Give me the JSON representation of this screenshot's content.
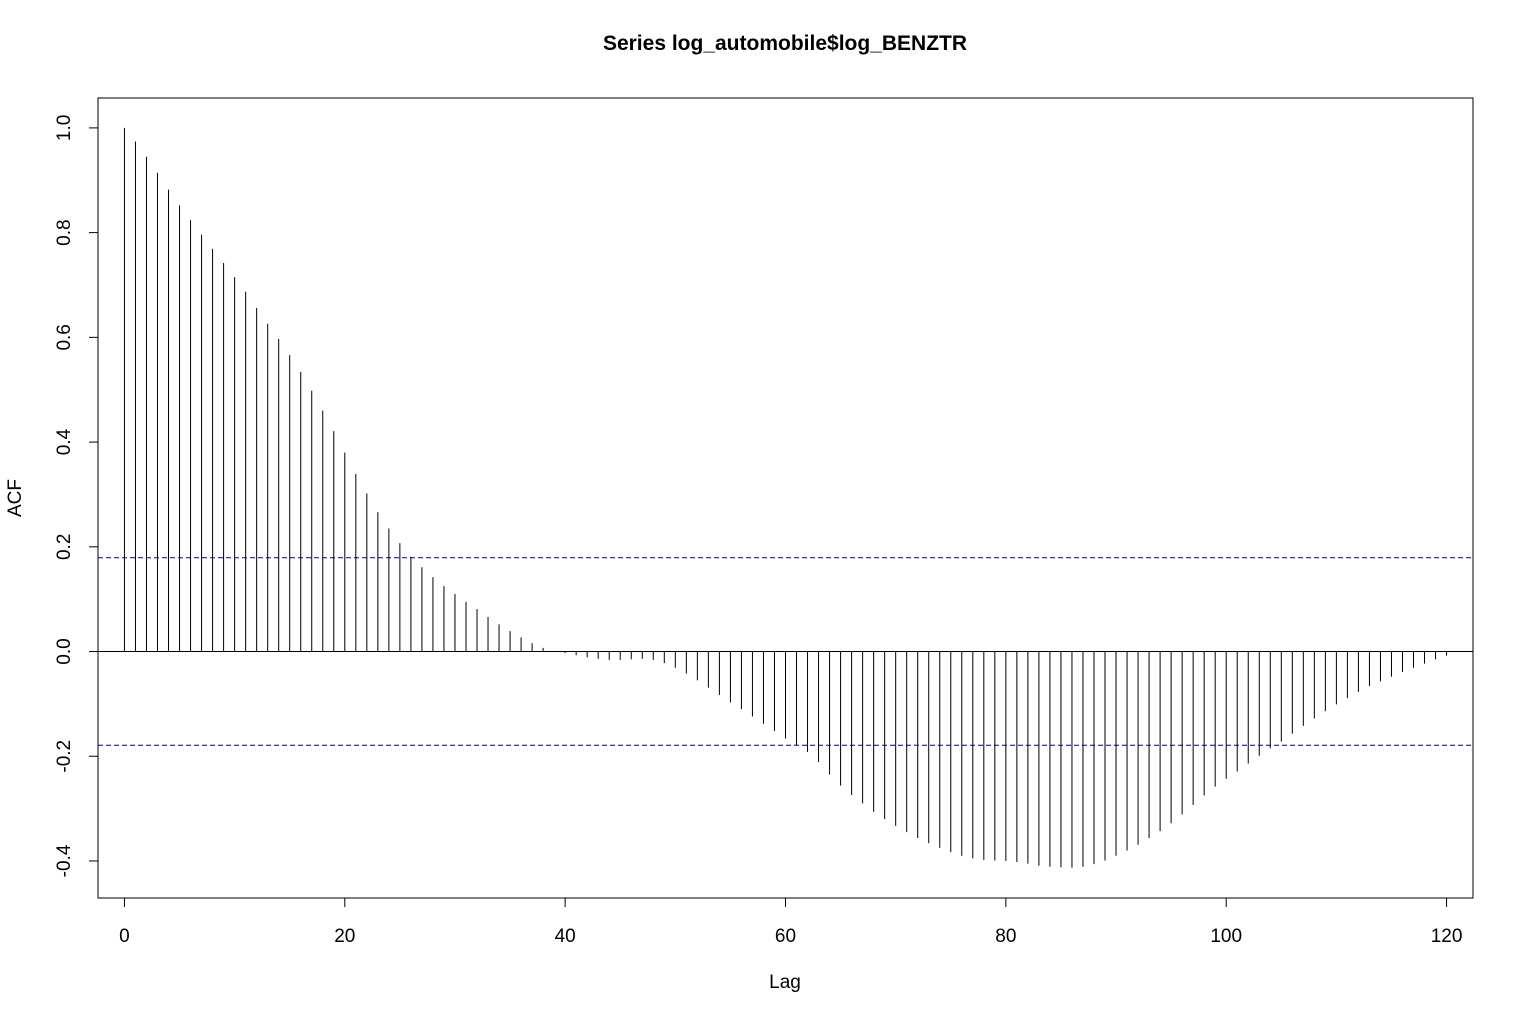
{
  "chart_data": {
    "type": "bar",
    "title": "Series  log_automobile$log_BENZTR",
    "xlabel": "Lag",
    "ylabel": "ACF",
    "xlim": [
      -2.4,
      122.4
    ],
    "ylim": [
      -0.4707,
      1.0571
    ],
    "x_ticks": [
      0,
      20,
      40,
      60,
      80,
      100,
      120
    ],
    "x_tick_labels": [
      "0",
      "20",
      "40",
      "60",
      "80",
      "100",
      "120"
    ],
    "y_ticks": [
      -0.4,
      -0.2,
      0.0,
      0.2,
      0.4,
      0.6,
      0.8,
      1.0
    ],
    "y_tick_labels": [
      "-0.4",
      "-0.2",
      "0.0",
      "0.2",
      "0.4",
      "0.6",
      "0.8",
      "1.0"
    ],
    "confidence_bound": 0.179,
    "confidence_color": "#00008b",
    "zero_line": true,
    "grid": false,
    "x": [
      0,
      1,
      2,
      3,
      4,
      5,
      6,
      7,
      8,
      9,
      10,
      11,
      12,
      13,
      14,
      15,
      16,
      17,
      18,
      19,
      20,
      21,
      22,
      23,
      24,
      25,
      26,
      27,
      28,
      29,
      30,
      31,
      32,
      33,
      34,
      35,
      36,
      37,
      38,
      39,
      40,
      41,
      42,
      43,
      44,
      45,
      46,
      47,
      48,
      49,
      50,
      51,
      52,
      53,
      54,
      55,
      56,
      57,
      58,
      59,
      60,
      61,
      62,
      63,
      64,
      65,
      66,
      67,
      68,
      69,
      70,
      71,
      72,
      73,
      74,
      75,
      76,
      77,
      78,
      79,
      80,
      81,
      82,
      83,
      84,
      85,
      86,
      87,
      88,
      89,
      90,
      91,
      92,
      93,
      94,
      95,
      96,
      97,
      98,
      99,
      100,
      101,
      102,
      103,
      104,
      105,
      106,
      107,
      108,
      109,
      110,
      111,
      112,
      113,
      114,
      115,
      116,
      117,
      118,
      119,
      120
    ],
    "acf": [
      1.0,
      0.974,
      0.945,
      0.914,
      0.882,
      0.852,
      0.824,
      0.796,
      0.769,
      0.742,
      0.715,
      0.687,
      0.656,
      0.626,
      0.597,
      0.566,
      0.534,
      0.498,
      0.46,
      0.421,
      0.38,
      0.339,
      0.302,
      0.266,
      0.235,
      0.207,
      0.181,
      0.161,
      0.142,
      0.125,
      0.11,
      0.095,
      0.081,
      0.066,
      0.052,
      0.039,
      0.027,
      0.016,
      0.007,
      0.001,
      -0.003,
      -0.007,
      -0.011,
      -0.014,
      -0.016,
      -0.016,
      -0.015,
      -0.014,
      -0.016,
      -0.022,
      -0.031,
      -0.042,
      -0.055,
      -0.069,
      -0.083,
      -0.097,
      -0.11,
      -0.124,
      -0.138,
      -0.152,
      -0.166,
      -0.179,
      -0.192,
      -0.211,
      -0.235,
      -0.256,
      -0.274,
      -0.29,
      -0.306,
      -0.32,
      -0.333,
      -0.345,
      -0.356,
      -0.366,
      -0.375,
      -0.383,
      -0.39,
      -0.395,
      -0.398,
      -0.399,
      -0.4,
      -0.402,
      -0.405,
      -0.409,
      -0.411,
      -0.412,
      -0.413,
      -0.411,
      -0.406,
      -0.399,
      -0.39,
      -0.38,
      -0.369,
      -0.356,
      -0.343,
      -0.328,
      -0.311,
      -0.293,
      -0.275,
      -0.258,
      -0.243,
      -0.229,
      -0.214,
      -0.199,
      -0.185,
      -0.172,
      -0.157,
      -0.142,
      -0.128,
      -0.114,
      -0.101,
      -0.089,
      -0.077,
      -0.066,
      -0.057,
      -0.048,
      -0.039,
      -0.031,
      -0.023,
      -0.015,
      -0.008
    ]
  }
}
